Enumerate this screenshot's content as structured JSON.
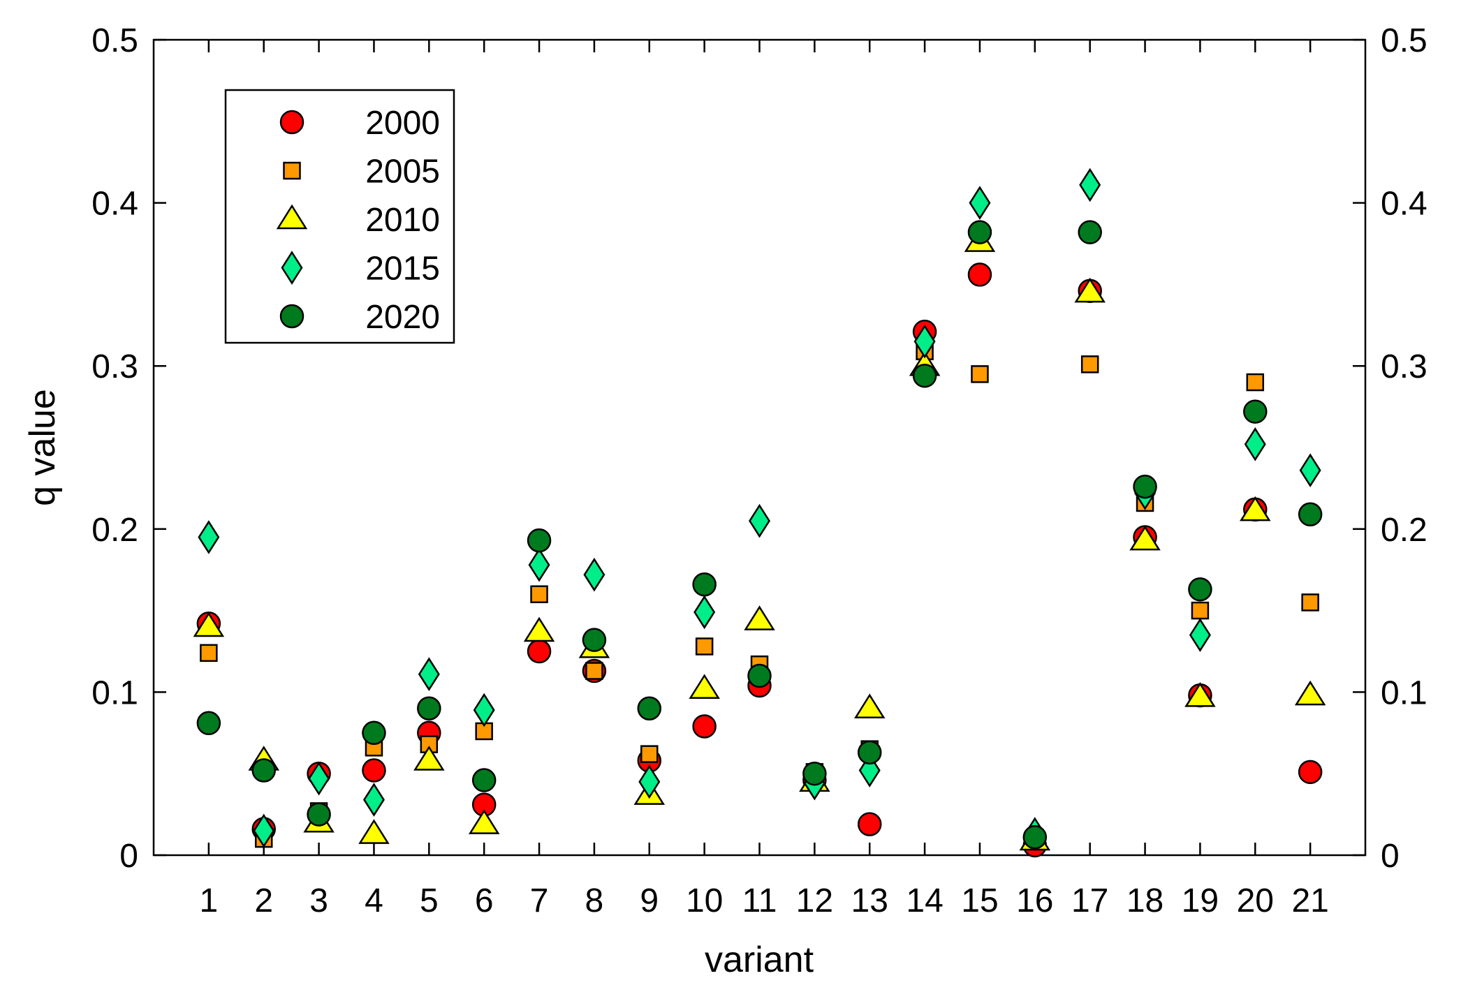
{
  "chart_data": {
    "type": "scatter",
    "xlabel": "variant",
    "ylabel": "q value",
    "xlim": [
      0,
      22
    ],
    "ylim": [
      0,
      0.5
    ],
    "grid": false,
    "legend_position": "top-left",
    "x_ticks": [
      "1",
      "2",
      "3",
      "4",
      "5",
      "6",
      "7",
      "8",
      "9",
      "10",
      "11",
      "12",
      "13",
      "14",
      "15",
      "16",
      "17",
      "18",
      "19",
      "20",
      "21"
    ],
    "y_ticks": [
      "0",
      "0.1",
      "0.2",
      "0.3",
      "0.4",
      "0.5"
    ],
    "y_tick_values": [
      0,
      0.1,
      0.2,
      0.3,
      0.4,
      0.5
    ],
    "right_y_ticks": [
      "0",
      "0.1",
      "0.2",
      "0.3",
      "0.4",
      "0.5"
    ],
    "x": [
      1,
      2,
      3,
      4,
      5,
      6,
      7,
      8,
      9,
      10,
      11,
      12,
      13,
      14,
      15,
      16,
      17,
      18,
      19,
      20,
      21
    ],
    "series": [
      {
        "name": "2000",
        "marker": "circle",
        "color": "#ff0000",
        "values": [
          0.142,
          0.016,
          0.05,
          0.052,
          0.075,
          0.031,
          0.125,
          0.113,
          0.058,
          0.079,
          0.104,
          0.046,
          0.019,
          0.321,
          0.356,
          0.006,
          0.346,
          0.195,
          0.098,
          0.212,
          0.051
        ]
      },
      {
        "name": "2005",
        "marker": "square",
        "color": "#ff9900",
        "values": [
          0.124,
          0.01,
          0.027,
          0.066,
          0.068,
          0.076,
          0.16,
          0.113,
          0.062,
          0.128,
          0.117,
          0.051,
          0.065,
          0.309,
          0.295,
          0.009,
          0.301,
          0.216,
          0.15,
          0.29,
          0.155
        ]
      },
      {
        "name": "2010",
        "marker": "triangle",
        "color": "#ffff00",
        "values": [
          0.14,
          0.058,
          0.02,
          0.013,
          0.058,
          0.019,
          0.137,
          0.127,
          0.037,
          0.102,
          0.144,
          0.045,
          0.09,
          0.3,
          0.376,
          0.009,
          0.345,
          0.193,
          0.097,
          0.211,
          0.098
        ]
      },
      {
        "name": "2015",
        "marker": "diamond",
        "color": "#00ee88",
        "values": [
          0.195,
          0.015,
          0.047,
          0.034,
          0.111,
          0.089,
          0.178,
          0.172,
          0.045,
          0.149,
          0.205,
          0.044,
          0.052,
          0.315,
          0.4,
          0.013,
          0.411,
          0.222,
          0.135,
          0.252,
          0.236
        ]
      },
      {
        "name": "2020",
        "marker": "circle",
        "color": "#007a1e",
        "values": [
          0.081,
          0.052,
          0.025,
          0.075,
          0.09,
          0.046,
          0.193,
          0.132,
          0.09,
          0.166,
          0.11,
          0.05,
          0.063,
          0.294,
          0.382,
          0.011,
          0.382,
          0.226,
          0.163,
          0.272,
          0.209
        ]
      }
    ]
  }
}
